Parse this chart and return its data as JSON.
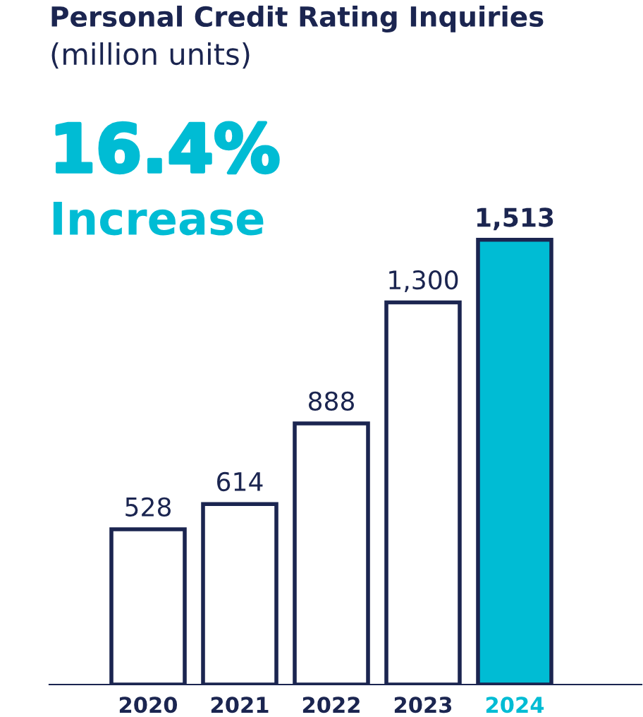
{
  "chart_data": {
    "type": "bar",
    "title": "Personal Credit Rating Inquiries",
    "subtitle": "(million units)",
    "categories": [
      "2020",
      "2021",
      "2022",
      "2023",
      "2024"
    ],
    "values": [
      528,
      614,
      888,
      1300,
      1513
    ],
    "colors": [
      "#ffffff",
      "#ffffff",
      "#ffffff",
      "#ffffff",
      "#00bcd4"
    ],
    "value_labels": [
      "528",
      "614",
      "888",
      "1,300",
      "1,513"
    ],
    "annotations": [
      "16.4%",
      "Increase"
    ],
    "grid": false,
    "legend": false
  }
}
